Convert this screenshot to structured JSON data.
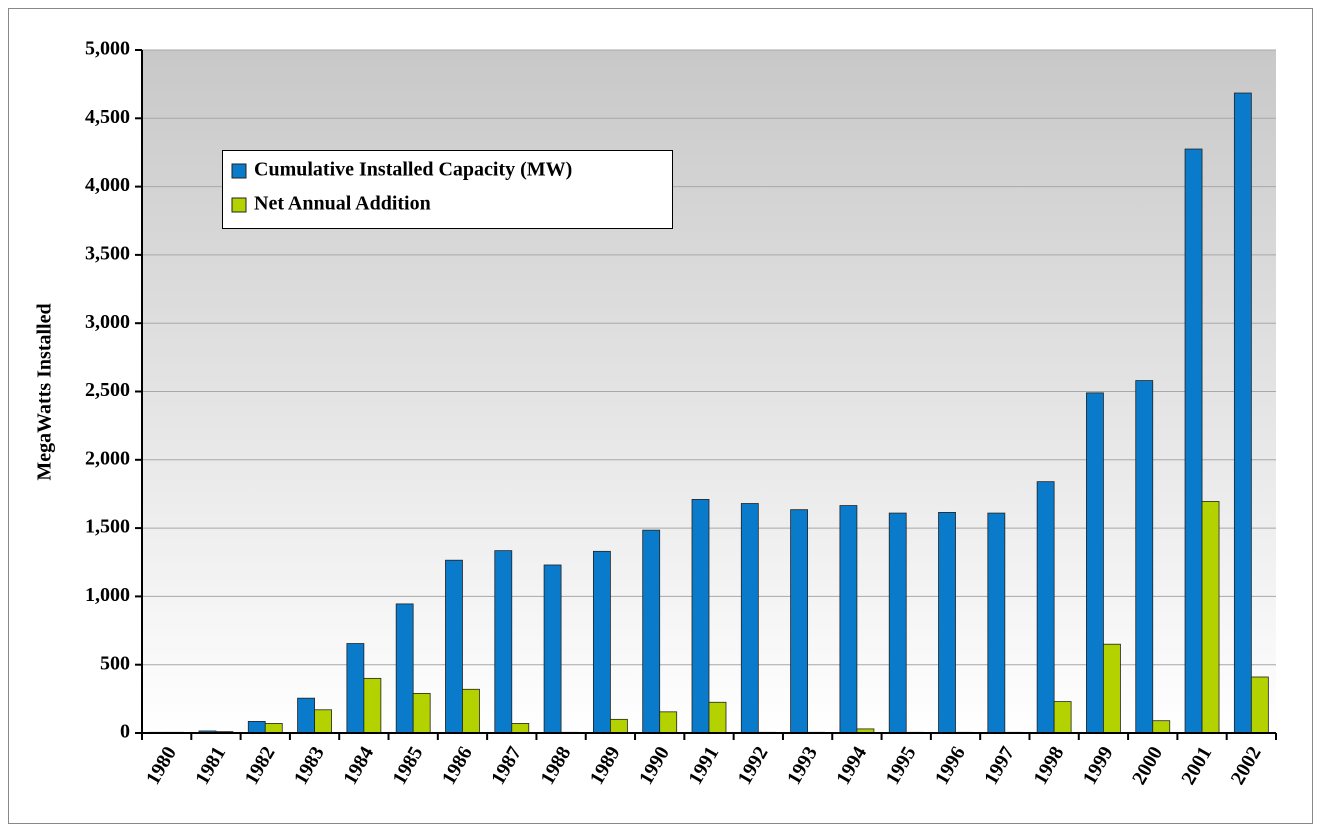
{
  "chart_data": {
    "type": "bar",
    "y_label": "MegaWatts Installed",
    "categories": [
      "1980",
      "1981",
      "1982",
      "1983",
      "1984",
      "1985",
      "1986",
      "1987",
      "1988",
      "1989",
      "1990",
      "1991",
      "1992",
      "1993",
      "1994",
      "1995",
      "1996",
      "1997",
      "1998",
      "1999",
      "2000",
      "2001",
      "2002"
    ],
    "series": [
      {
        "name": "Cumulative Installed Capacity (MW)",
        "color": "#0a7acb",
        "values": [
          5,
          15,
          85,
          255,
          655,
          945,
          1265,
          1335,
          1230,
          1330,
          1485,
          1710,
          1680,
          1635,
          1665,
          1610,
          1615,
          1610,
          1840,
          2490,
          2580,
          4275,
          4685
        ]
      },
      {
        "name": "Net Annual Addition",
        "color": "#b4d200",
        "values": [
          5,
          10,
          70,
          170,
          400,
          290,
          320,
          70,
          5,
          100,
          155,
          225,
          5,
          5,
          30,
          5,
          5,
          5,
          230,
          650,
          90,
          1695,
          410
        ]
      }
    ],
    "ylim": [
      0,
      5000
    ],
    "yticks": [
      0,
      500,
      {
        "value": 1000,
        "label": "1,000"
      },
      {
        "value": 1500,
        "label": "1,500"
      },
      {
        "value": 2000,
        "label": "2,000"
      },
      {
        "value": 2500,
        "label": "2,500"
      },
      {
        "value": 3000,
        "label": "3,000"
      },
      {
        "value": 3500,
        "label": "3,500"
      },
      {
        "value": 4000,
        "label": "4,000"
      },
      {
        "value": 4500,
        "label": "4,500"
      },
      {
        "value": 5000,
        "label": "5,000"
      }
    ],
    "grid": true,
    "legend": "upper left"
  }
}
